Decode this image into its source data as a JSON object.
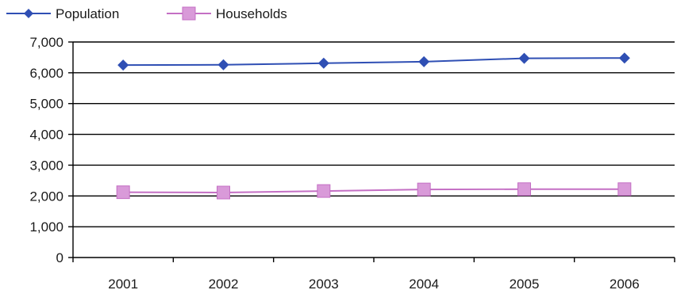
{
  "chart_data": {
    "type": "line",
    "categories": [
      "2001",
      "2002",
      "2003",
      "2004",
      "2005",
      "2006"
    ],
    "series": [
      {
        "name": "Population",
        "values": [
          6250,
          6260,
          6310,
          6360,
          6470,
          6480
        ],
        "color": "#2f4fb4",
        "marker": "diamond"
      },
      {
        "name": "Households",
        "values": [
          2120,
          2110,
          2160,
          2210,
          2220,
          2220
        ],
        "color": "#c46fc4",
        "marker": "square",
        "marker_color": "#d99ad9"
      }
    ],
    "ylim": [
      0,
      7000
    ],
    "yticks": [
      "0",
      "1,000",
      "2,000",
      "3,000",
      "4,000",
      "5,000",
      "6,000",
      "7,000"
    ],
    "grid": true,
    "legend_position": "top-left"
  }
}
